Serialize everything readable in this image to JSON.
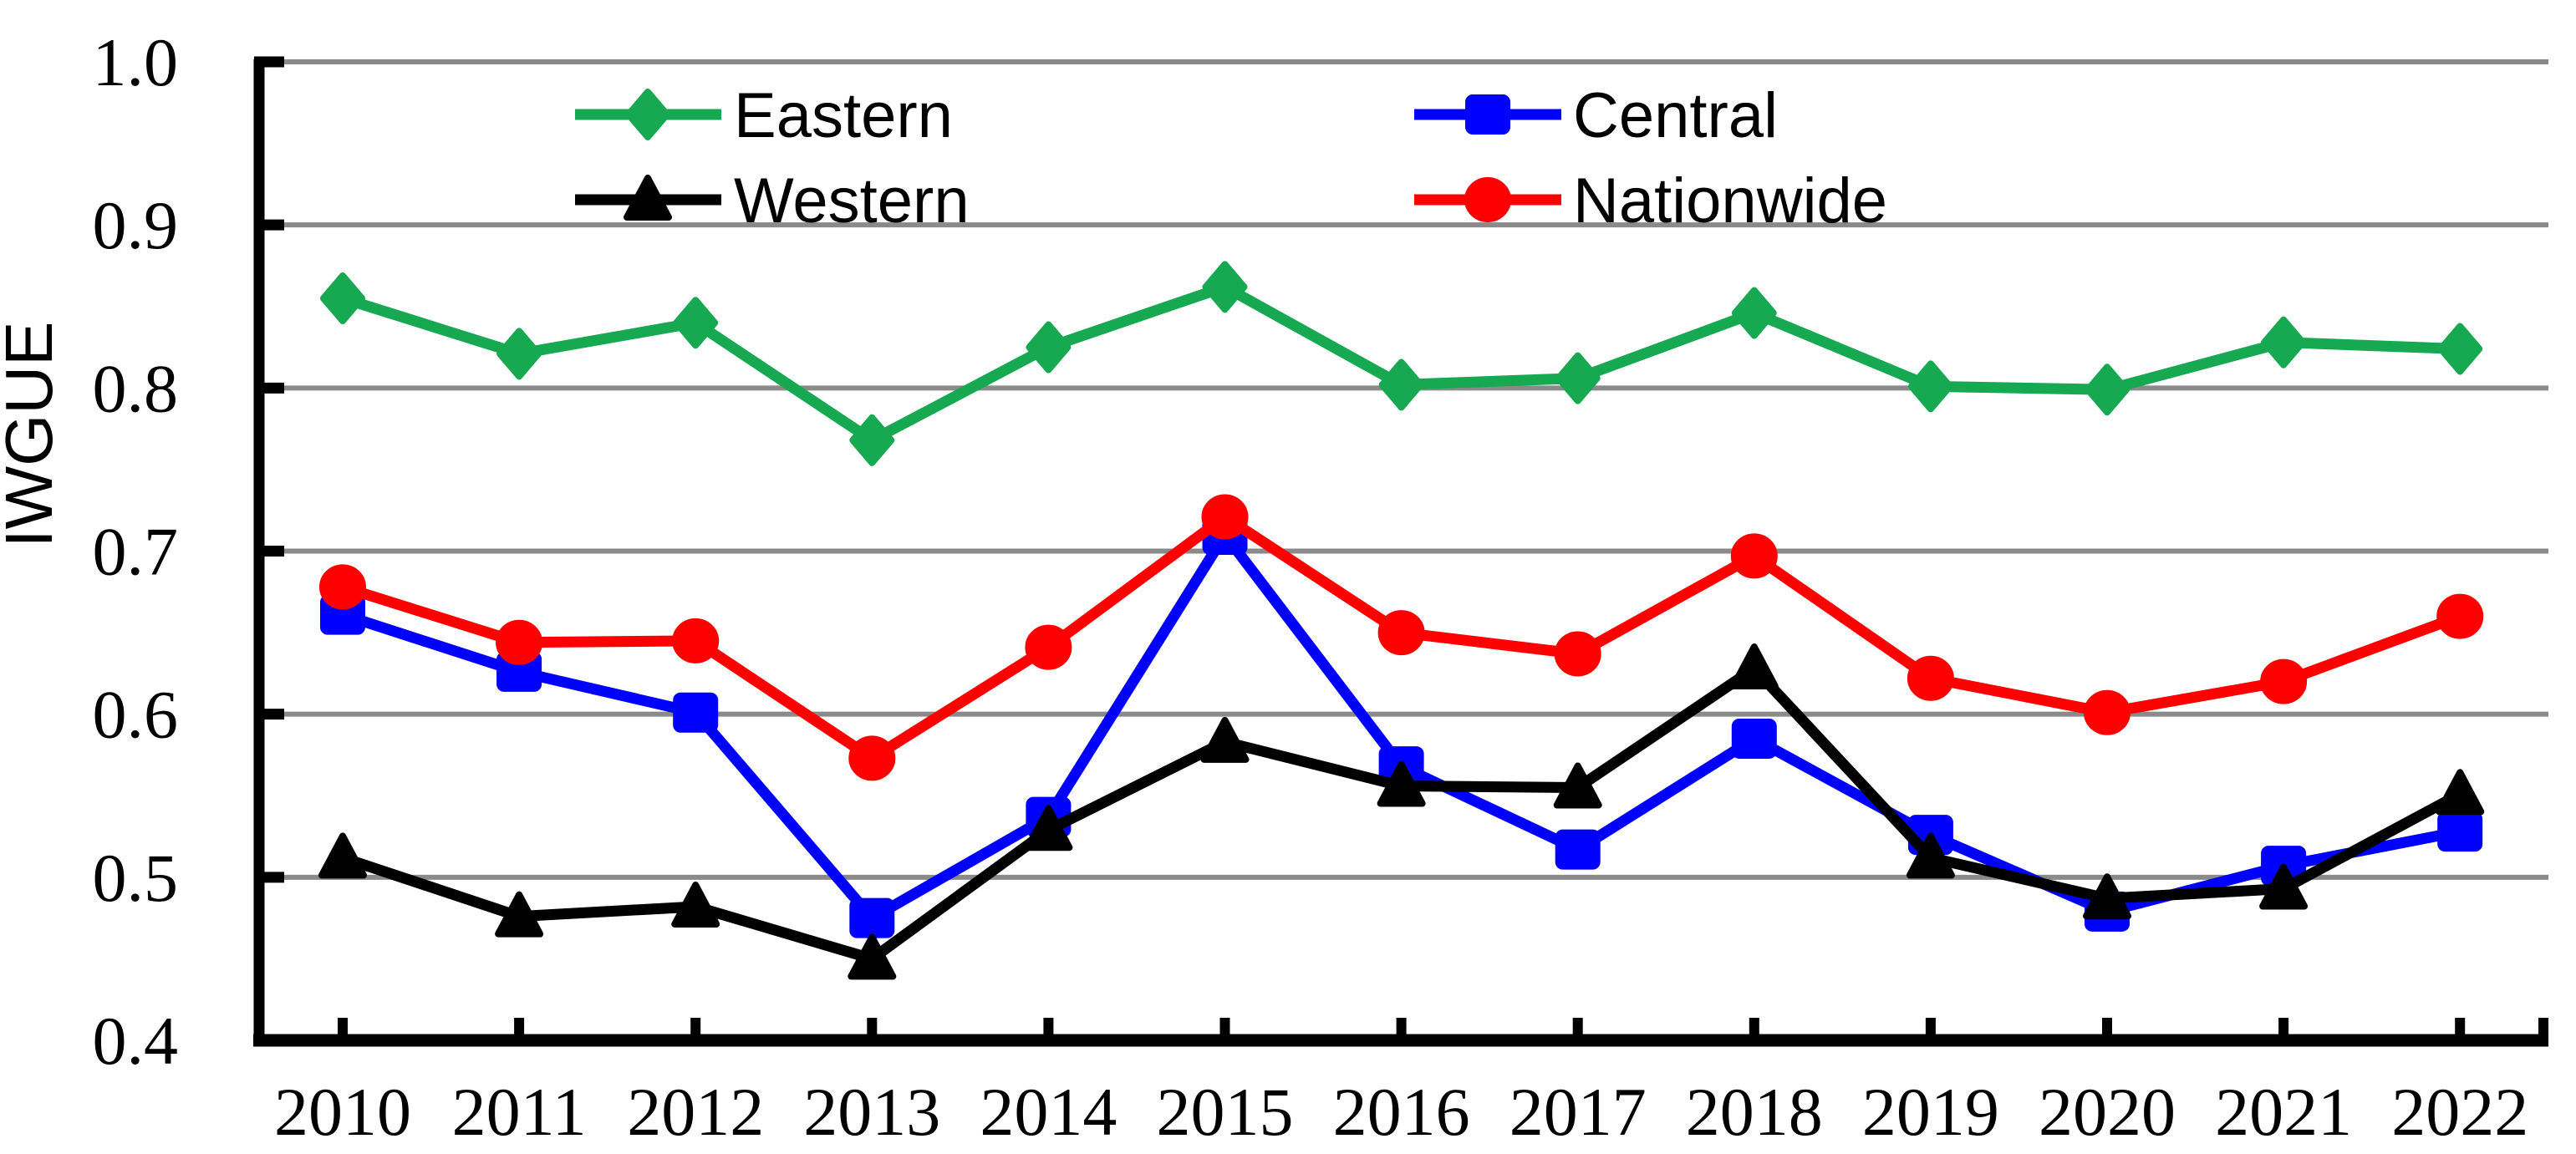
{
  "chart_data": {
    "type": "line",
    "title": "",
    "xlabel": "",
    "ylabel": "IWGUE",
    "ylim": [
      0.4,
      1.0
    ],
    "grid": true,
    "legend_position": "top-inside",
    "yticks": [
      "1.0",
      "0.9",
      "0.8",
      "0.7",
      "0.6",
      "0.5",
      "0.4"
    ],
    "categories": [
      "2010",
      "2011",
      "2012",
      "2013",
      "2014",
      "2015",
      "2016",
      "2017",
      "2018",
      "2019",
      "2020",
      "2021",
      "2022"
    ],
    "series": [
      {
        "name": "Eastern",
        "marker": "diamond-icon",
        "color": "#17A951",
        "values": [
          0.855,
          0.821,
          0.84,
          0.768,
          0.825,
          0.862,
          0.802,
          0.806,
          0.846,
          0.801,
          0.799,
          0.828,
          0.824
        ]
      },
      {
        "name": "Central",
        "marker": "square-icon",
        "color": "#0000FF",
        "values": [
          0.661,
          0.626,
          0.601,
          0.475,
          0.537,
          0.71,
          0.568,
          0.517,
          0.585,
          0.526,
          0.479,
          0.507,
          0.528
        ]
      },
      {
        "name": "Western",
        "marker": "triangle-icon",
        "color": "#000000",
        "values": [
          0.512,
          0.476,
          0.482,
          0.45,
          0.529,
          0.583,
          0.556,
          0.555,
          0.628,
          0.512,
          0.487,
          0.493,
          0.551
        ]
      },
      {
        "name": "Nationwide",
        "marker": "circle-icon",
        "color": "#FF0000",
        "values": [
          0.678,
          0.644,
          0.645,
          0.573,
          0.641,
          0.721,
          0.65,
          0.637,
          0.697,
          0.622,
          0.601,
          0.62,
          0.66
        ]
      }
    ],
    "legend": {
      "columns": [
        [
          "Eastern",
          "Western"
        ],
        [
          "Central",
          "Nationwide"
        ]
      ]
    }
  },
  "colors": {
    "background": "#FFFFFF",
    "gridline": "#8A8A8A",
    "axis": "#000000",
    "text": "#000000"
  }
}
